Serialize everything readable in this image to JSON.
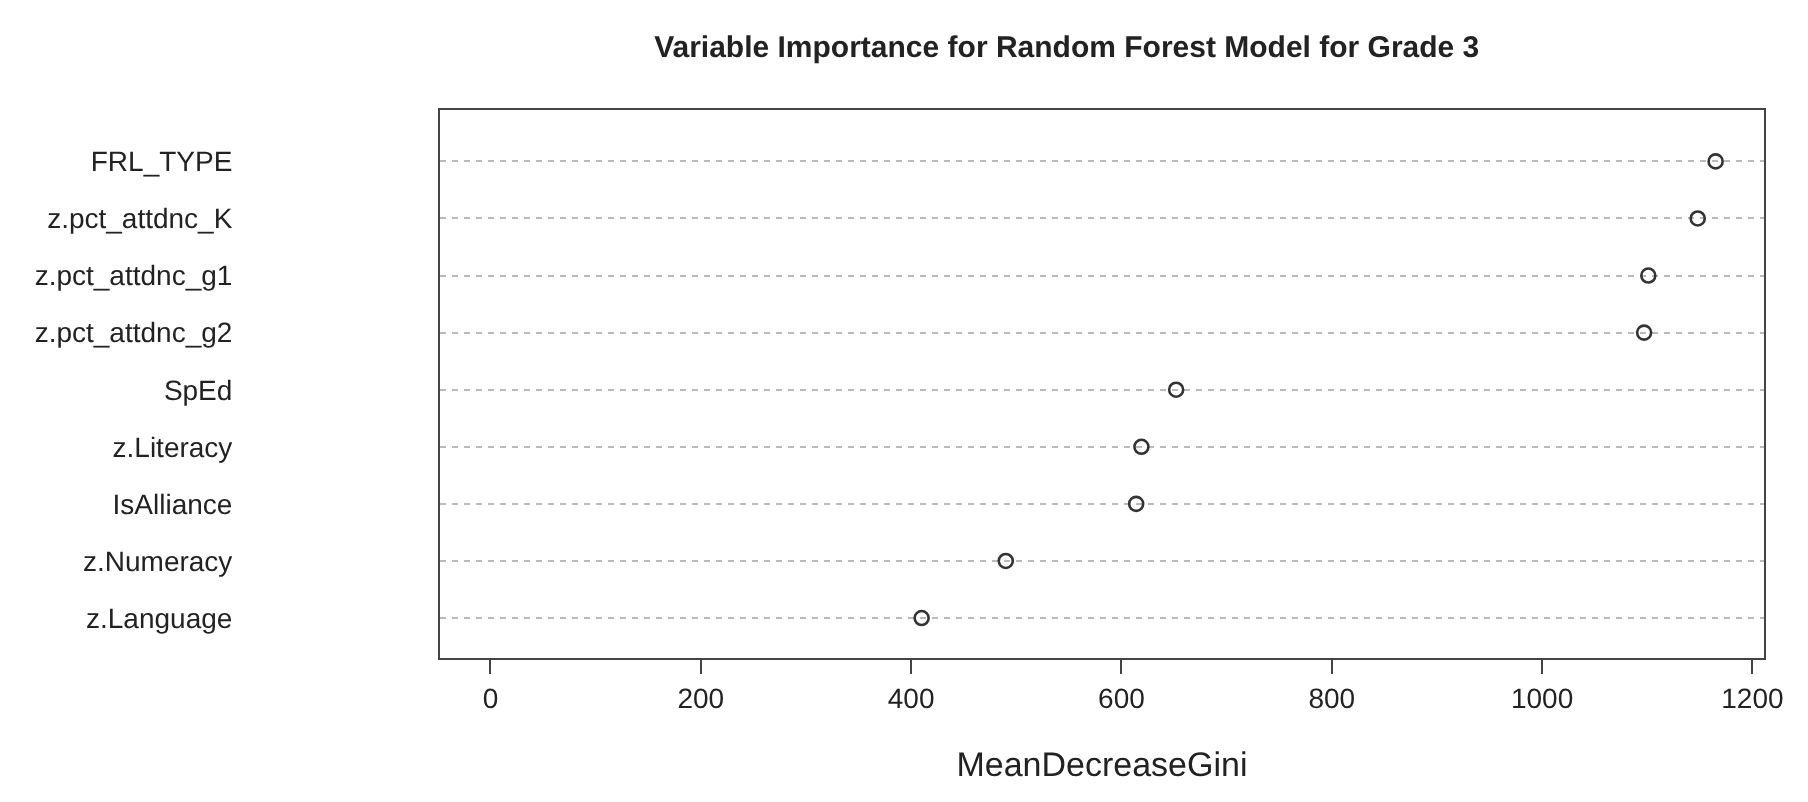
{
  "chart_data": {
    "type": "scatter",
    "title": "Variable Importance for Random Forest Model for Grade 3",
    "xlabel": "MeanDecreaseGini",
    "orientation": "horizontal",
    "categories": [
      "FRL_TYPE",
      "z.pct_attdnc_K",
      "z.pct_attdnc_g1",
      "z.pct_attdnc_g2",
      "SpEd",
      "z.Literacy",
      "IsAlliance",
      "z.Numeracy",
      "z.Language"
    ],
    "values": [
      1165,
      1148,
      1101,
      1097,
      652,
      619,
      614,
      490,
      410
    ],
    "color": "#333333",
    "marker": "circle",
    "grid": "y",
    "legend": false,
    "xlim": [
      -48,
      1211
    ],
    "xticks": [
      0,
      200,
      400,
      600,
      800,
      1000,
      1200
    ]
  }
}
